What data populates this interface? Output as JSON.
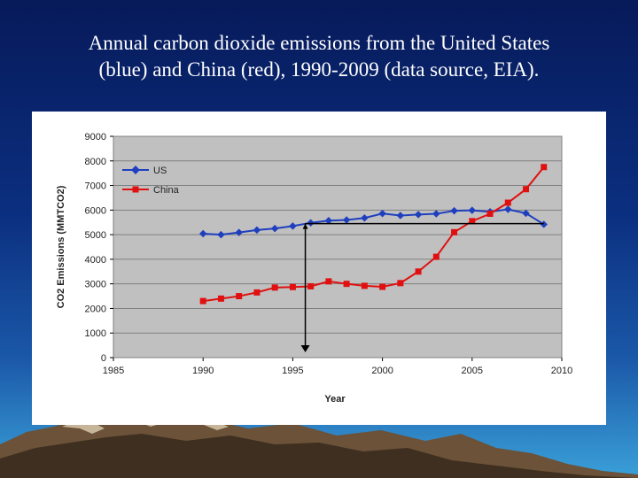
{
  "slide": {
    "title_line1": "Annual carbon dioxide emissions from the United States",
    "title_line2": "(blue) and China (red), 1990-2009 (data source, EIA)."
  },
  "chart_data": {
    "type": "line",
    "xlabel": "Year",
    "ylabel": "CO2 Emissions (MMTCO2)",
    "xlim": [
      1985,
      2010
    ],
    "ylim": [
      0,
      9000
    ],
    "xticks": [
      1985,
      1990,
      1995,
      2000,
      2005,
      2010
    ],
    "yticks": [
      0,
      1000,
      2000,
      3000,
      4000,
      5000,
      6000,
      7000,
      8000,
      9000
    ],
    "grid": true,
    "legend_position": "top-left",
    "series": [
      {
        "name": "US",
        "color": "#1f3fbf",
        "marker": "diamond",
        "x": [
          1990,
          1991,
          1992,
          1993,
          1994,
          1995,
          1996,
          1997,
          1998,
          1999,
          2000,
          2001,
          2002,
          2003,
          2004,
          2005,
          2006,
          2007,
          2008,
          2009
        ],
        "y": [
          5040,
          5000,
          5090,
          5190,
          5250,
          5350,
          5480,
          5570,
          5600,
          5680,
          5860,
          5780,
          5820,
          5850,
          5970,
          5990,
          5930,
          6030,
          5870,
          5420
        ]
      },
      {
        "name": "China",
        "color": "#e01010",
        "marker": "square",
        "x": [
          1990,
          1991,
          1992,
          1993,
          1994,
          1995,
          1996,
          1997,
          1998,
          1999,
          2000,
          2001,
          2002,
          2003,
          2004,
          2005,
          2006,
          2007,
          2008,
          2009
        ],
        "y": [
          2300,
          2400,
          2500,
          2650,
          2850,
          2870,
          2900,
          3100,
          3000,
          2920,
          2880,
          3030,
          3500,
          4100,
          5100,
          5550,
          5850,
          6300,
          6850,
          7750
        ]
      }
    ],
    "annotations": [
      {
        "type": "horizontal-line",
        "y": 5450,
        "x_from": 1995.7,
        "x_to": 2009,
        "color": "#000000"
      },
      {
        "type": "vertical-arrow",
        "x": 1995.7,
        "y_from": 5450,
        "y_to": 0,
        "color": "#000000"
      }
    ]
  }
}
